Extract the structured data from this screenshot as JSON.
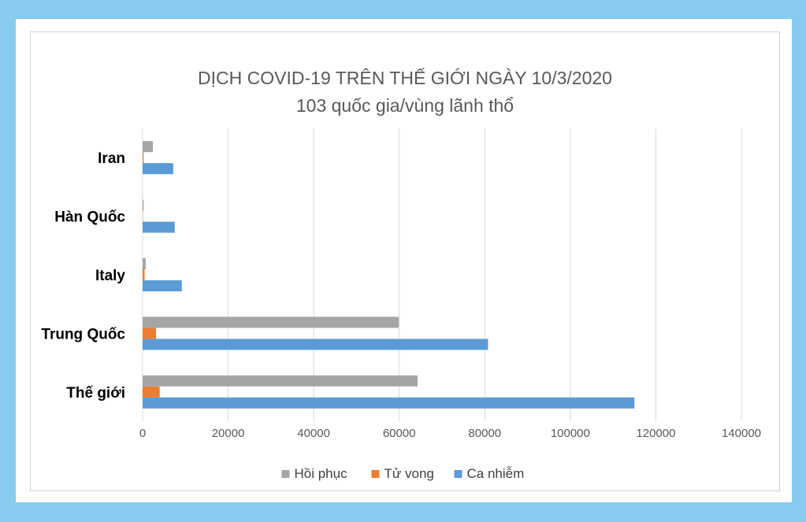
{
  "chart_data": {
    "type": "bar",
    "orientation": "horizontal",
    "title": "DỊCH COVID-19 TRÊN THẾ GIỚI NGÀY 10/3/2020",
    "subtitle": "103 quốc gia/vùng lãnh thổ",
    "categories": [
      "Thế giới",
      "Trung Quốc",
      "Italy",
      "Hàn Quốc",
      "Iran"
    ],
    "series": [
      {
        "name": "Ca nhiễm",
        "color": "#5b9bd5",
        "values": [
          115000,
          80760,
          9172,
          7513,
          7161
        ]
      },
      {
        "name": "Tử vong",
        "color": "#ed7d31",
        "values": [
          4000,
          3136,
          463,
          54,
          237
        ]
      },
      {
        "name": "Hồi phục",
        "color": "#a5a5a5",
        "values": [
          64300,
          59900,
          724,
          247,
          2394
        ]
      }
    ],
    "xlim": [
      0,
      140000
    ],
    "xticks": [
      0,
      20000,
      40000,
      60000,
      80000,
      100000,
      120000,
      140000
    ],
    "grid": true,
    "legend": {
      "position": "bottom",
      "order": [
        "Hồi phục",
        "Tử vong",
        "Ca nhiễm"
      ]
    }
  }
}
